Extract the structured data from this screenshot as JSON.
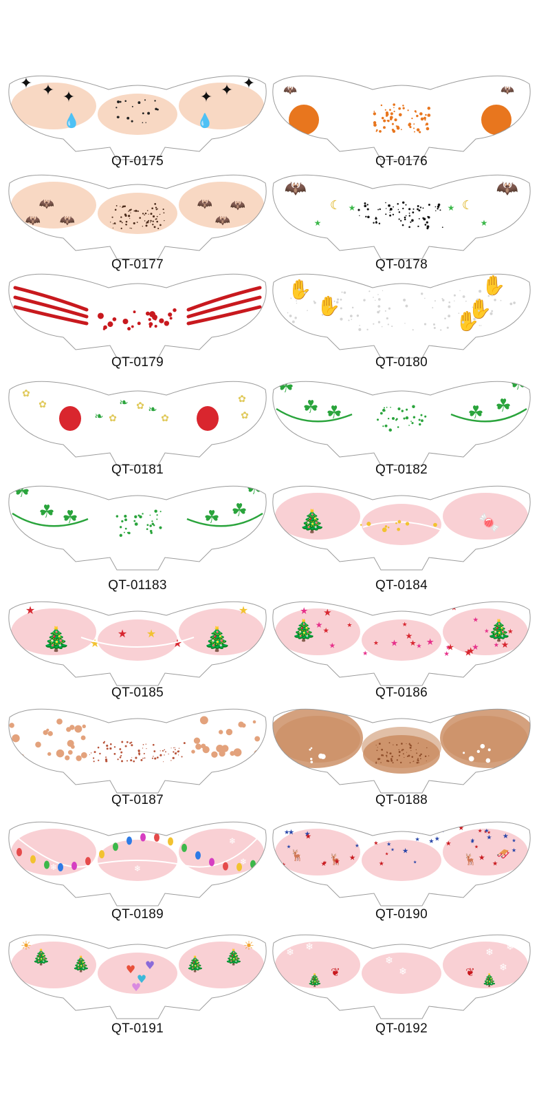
{
  "products": [
    {
      "code": "QT-0175",
      "design": "black-sparkle-tears",
      "tint": "#f2b891",
      "accent": "#111111"
    },
    {
      "code": "QT-0176",
      "design": "pumpkins-bats",
      "tint": "#ffffff",
      "accent": "#e8761e"
    },
    {
      "code": "QT-0177",
      "design": "bats-witch-hats",
      "tint": "#f2b891",
      "accent": "#111111"
    },
    {
      "code": "QT-0178",
      "design": "bats-moons-stars",
      "tint": "#ffffff",
      "accent": "#111111"
    },
    {
      "code": "QT-0179",
      "design": "claw-scratches-blood",
      "tint": "#ffffff",
      "accent": "#c8191e"
    },
    {
      "code": "QT-0180",
      "design": "bloody-handprints",
      "tint": "#ffffff",
      "accent": "#c8191e"
    },
    {
      "code": "QT-0181",
      "design": "strawberries-daisies",
      "tint": "#ffffff",
      "accent": "#d9262e"
    },
    {
      "code": "QT-0182",
      "design": "clover-swirls",
      "tint": "#ffffff",
      "accent": "#2aa43c"
    },
    {
      "code": "QT-01183",
      "design": "shamrock-vines",
      "tint": "#ffffff",
      "accent": "#2aa43c"
    },
    {
      "code": "QT-0184",
      "design": "christmas-tree-lights",
      "tint": "#f4a9b1",
      "accent": "#2e8b3e"
    },
    {
      "code": "QT-0185",
      "design": "christmas-trees-stars",
      "tint": "#f4a9b1",
      "accent": "#d7262f"
    },
    {
      "code": "QT-0186",
      "design": "red-stars-trees",
      "tint": "#f4a9b1",
      "accent": "#d7262f"
    },
    {
      "code": "QT-0187",
      "design": "peach-dots",
      "tint": "#ffffff",
      "accent": "#d98a5f"
    },
    {
      "code": "QT-0188",
      "design": "bronze-glow-freckles",
      "tint": "#c98a5e",
      "accent": "#8f4e2a"
    },
    {
      "code": "QT-0189",
      "design": "string-lights-snowflakes",
      "tint": "#f4a9b1",
      "accent": "#e54b4b"
    },
    {
      "code": "QT-0190",
      "design": "reindeer-sleigh",
      "tint": "#f4a9b1",
      "accent": "#2845a8"
    },
    {
      "code": "QT-0191",
      "design": "hearts-trees-suns",
      "tint": "#f4a9b1",
      "accent": "#e8503a"
    },
    {
      "code": "QT-0192",
      "design": "snowflakes-holly",
      "tint": "#f4a9b1",
      "accent": "#2e8b3e"
    }
  ]
}
